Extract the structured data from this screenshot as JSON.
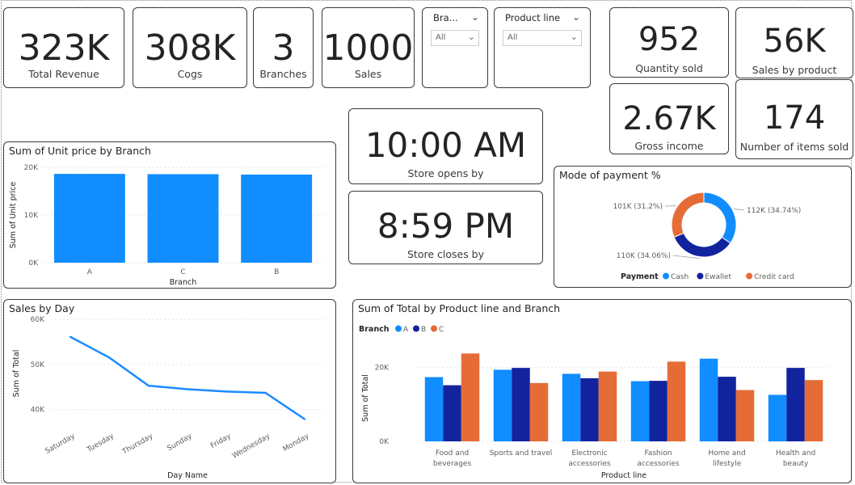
{
  "kpis": {
    "total_revenue": {
      "value": "323K",
      "label": "Total Revenue"
    },
    "cogs": {
      "value": "308K",
      "label": "Cogs"
    },
    "branches": {
      "value": "3",
      "label": "Branches"
    },
    "sales": {
      "value": "1000",
      "label": "Sales"
    },
    "quantity_sold": {
      "value": "952",
      "label": "Quantity sold"
    },
    "sales_by_product": {
      "value": "56K",
      "label": "Sales by product"
    },
    "gross_income": {
      "value": "2.67K",
      "label": "Gross income"
    },
    "items_sold": {
      "value": "174",
      "label": "Number of items sold"
    },
    "store_opens": {
      "value": "10:00 AM",
      "label": "Store opens by"
    },
    "store_closes": {
      "value": "8:59 PM",
      "label": "Store closes by"
    }
  },
  "slicers": {
    "branch": {
      "title": "Bra...",
      "value": "All"
    },
    "product_line": {
      "title": "Product line",
      "value": "All"
    }
  },
  "colors": {
    "blue": "#118DFF",
    "dark_blue": "#12239E",
    "orange": "#E66C37",
    "line": "#1A8BFF"
  },
  "icons": {
    "dropdown": "chevron-down-icon"
  },
  "chart_data": [
    {
      "id": "unit_price_by_branch",
      "type": "bar",
      "title": "Sum of Unit price by Branch",
      "xlabel": "Branch",
      "ylabel": "Sum of Unit price",
      "categories": [
        "A",
        "C",
        "B"
      ],
      "values": [
        18625,
        18568,
        18478
      ],
      "ylim": [
        0,
        20000
      ],
      "yticks": [
        {
          "v": 0,
          "label": "0K"
        },
        {
          "v": 10000,
          "label": "10K"
        },
        {
          "v": 20000,
          "label": "20K"
        }
      ],
      "grid": true
    },
    {
      "id": "mode_of_payment",
      "type": "pie",
      "title": "Mode of payment %",
      "legend_title": "Payment",
      "legend_position": "bottom",
      "slices": [
        {
          "name": "Cash",
          "value": 112,
          "label": "112K (34.74%)",
          "color": "#118DFF"
        },
        {
          "name": "Ewallet",
          "value": 110,
          "label": "110K (34.06%)",
          "color": "#12239E"
        },
        {
          "name": "Credit card",
          "value": 101,
          "label": "101K (31.2%)",
          "color": "#E66C37"
        }
      ]
    },
    {
      "id": "sales_by_day",
      "type": "line",
      "title": "Sales by Day",
      "xlabel": "Day Name",
      "ylabel": "Sum of Total",
      "categories": [
        "Saturday",
        "Tuesday",
        "Thursday",
        "Sunday",
        "Friday",
        "Wednesday",
        "Monday"
      ],
      "values": [
        56100,
        51500,
        45300,
        44500,
        44000,
        43700,
        37900
      ],
      "ylim": [
        36000,
        60000
      ],
      "yticks": [
        {
          "v": 40000,
          "label": "40K"
        },
        {
          "v": 50000,
          "label": "50K"
        },
        {
          "v": 60000,
          "label": "60K"
        }
      ],
      "grid": true
    },
    {
      "id": "total_by_product_branch",
      "type": "bar",
      "title": "Sum of Total by Product line and Branch",
      "xlabel": "Product line",
      "ylabel": "Sum of Total",
      "legend_title": "Branch",
      "legend_position": "top-left",
      "categories": [
        [
          "Food and",
          "beverages"
        ],
        [
          "Sports and travel"
        ],
        [
          "Electronic",
          "accessories"
        ],
        [
          "Fashion",
          "accessories"
        ],
        [
          "Home and",
          "lifestyle"
        ],
        [
          "Health and",
          "beauty"
        ]
      ],
      "series": [
        {
          "name": "A",
          "color": "#118DFF",
          "values": [
            17400,
            19400,
            18300,
            16300,
            22400,
            12600
          ]
        },
        {
          "name": "B",
          "color": "#12239E",
          "values": [
            15200,
            19900,
            17100,
            16400,
            17500,
            19900
          ]
        },
        {
          "name": "C",
          "color": "#E66C37",
          "values": [
            23800,
            15800,
            18900,
            21600,
            13900,
            16600
          ]
        }
      ],
      "ylim": [
        0,
        30000
      ],
      "yticks": [
        {
          "v": 0,
          "label": "0K"
        },
        {
          "v": 20000,
          "label": "20K"
        }
      ],
      "grid": true
    }
  ]
}
